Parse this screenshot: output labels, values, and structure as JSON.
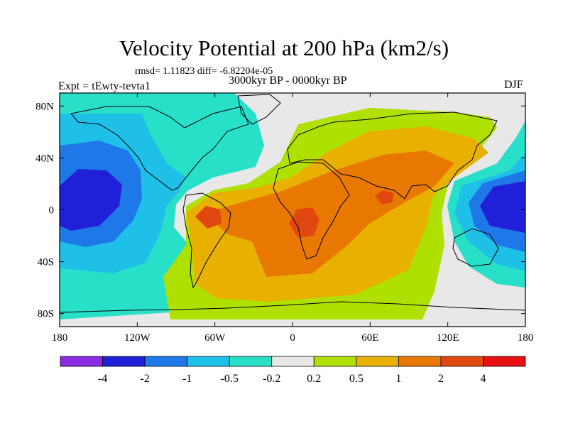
{
  "title": "Velocity Potential at 200 hPa (km2/s)",
  "stats": "rmsd= 1.11823 diff= -6.82204e-05",
  "period": "3000kyr BP - 0000kyr BP",
  "experiment": "Expt = tEwty-tevta1",
  "season": "DJF",
  "axes": {
    "x_ticks": [
      {
        "value": -180,
        "label": "180"
      },
      {
        "value": -120,
        "label": "120W"
      },
      {
        "value": -60,
        "label": "60W"
      },
      {
        "value": 0,
        "label": "0"
      },
      {
        "value": 60,
        "label": "60E"
      },
      {
        "value": 120,
        "label": "120E"
      },
      {
        "value": 180,
        "label": "180"
      }
    ],
    "y_ticks": [
      {
        "value": 80,
        "label": "80N"
      },
      {
        "value": 40,
        "label": "40N"
      },
      {
        "value": 0,
        "label": "0"
      },
      {
        "value": -40,
        "label": "40S"
      },
      {
        "value": -80,
        "label": "80S"
      }
    ],
    "lon_range": [
      -180,
      180
    ],
    "lat_range": [
      -90,
      90
    ]
  },
  "colorbar": {
    "colors": [
      "#8a2be2",
      "#2020d8",
      "#1e78e8",
      "#1ec0e8",
      "#28e0c8",
      "#e8e8e8",
      "#b0e000",
      "#e8b000",
      "#e87800",
      "#e04810",
      "#e81010"
    ],
    "labels": [
      "-4",
      "-2",
      "-1",
      "-0.5",
      "-0.2",
      "0.2",
      "0.5",
      "1",
      "2",
      "4"
    ]
  }
}
